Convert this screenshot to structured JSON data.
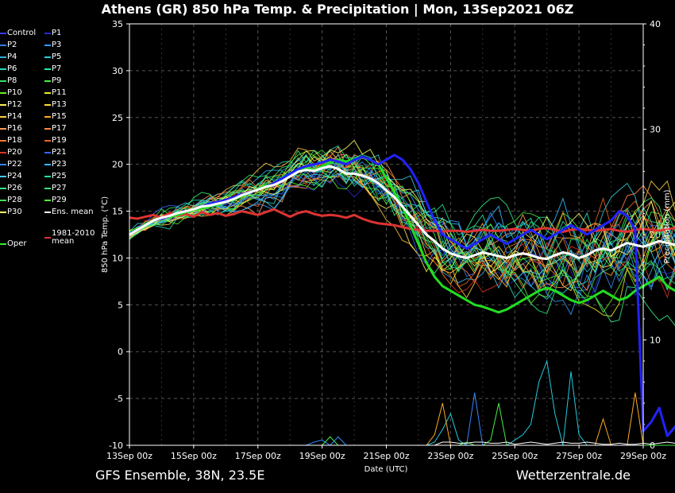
{
  "page": {
    "title": "Athens  (GR)  850 hPa Temp. & Precipitation | Mon, 13Sep2021 06Z",
    "footer_left": "GFS Ensemble, 38N, 23.5E",
    "footer_right": "Wetterzentrale.de"
  },
  "legend": {
    "items": [
      {
        "label": "Control",
        "color": "#3a3aff"
      },
      {
        "label": "P1",
        "color": "#2a2acc"
      },
      {
        "label": "P2",
        "color": "#3377ee"
      },
      {
        "label": "P3",
        "color": "#3399ff"
      },
      {
        "label": "P4",
        "color": "#33aadd"
      },
      {
        "label": "P5",
        "color": "#33ccdd"
      },
      {
        "label": "P6",
        "color": "#22ddbb"
      },
      {
        "label": "P7",
        "color": "#22ee99"
      },
      {
        "label": "P8",
        "color": "#33dd66"
      },
      {
        "label": "P9",
        "color": "#44ee44"
      },
      {
        "label": "P10",
        "color": "#66ee22"
      },
      {
        "label": "P11",
        "color": "#eeee22"
      },
      {
        "label": "P12",
        "color": "#ffee55"
      },
      {
        "label": "P13",
        "color": "#ffdd33"
      },
      {
        "label": "P14",
        "color": "#ffcc44"
      },
      {
        "label": "P15",
        "color": "#ffaa22"
      },
      {
        "label": "P16",
        "color": "#ff9955"
      },
      {
        "label": "P17",
        "color": "#ff8844"
      },
      {
        "label": "P18",
        "color": "#ff7733"
      },
      {
        "label": "P19",
        "color": "#ee6622"
      },
      {
        "label": "P20",
        "color": "#dd3322"
      },
      {
        "label": "P21",
        "color": "#3366ff"
      },
      {
        "label": "P22",
        "color": "#3388ff"
      },
      {
        "label": "P23",
        "color": "#33bbff"
      },
      {
        "label": "P24",
        "color": "#44ccee"
      },
      {
        "label": "P25",
        "color": "#22ddaa"
      },
      {
        "label": "P26",
        "color": "#33ee88"
      },
      {
        "label": "P27",
        "color": "#33ee77"
      },
      {
        "label": "P28",
        "color": "#44dd55"
      },
      {
        "label": "P29",
        "color": "#55ee33"
      },
      {
        "label": "P30",
        "color": "#ffff66"
      },
      {
        "label": "Ens. mean",
        "color": "#ffffff"
      }
    ],
    "clim_label_1": "1981-2010",
    "clim_label_2": "mean",
    "clim_color": "#dd3333",
    "oper_label": "Oper",
    "oper_color": "#33ee33"
  },
  "chart_data": {
    "type": "line",
    "x_tick_labels": [
      "13Sep 00z",
      "15Sep 00z",
      "17Sep 00z",
      "19Sep 00z",
      "21Sep 00z",
      "23Sep 00z",
      "25Sep 00z",
      "27Sep 00z",
      "29Sep 00z"
    ],
    "xlabel": "Date (UTC)",
    "ylabel": "850 hPa Temp. (°C)",
    "ylabel_right": "Precipitation (mm)",
    "xlim": [
      0,
      384
    ],
    "ylim": [
      -10,
      35
    ],
    "y_ticks": [
      -10,
      -5,
      0,
      5,
      10,
      15,
      20,
      25,
      30,
      35
    ],
    "ylim_right": [
      0,
      40
    ],
    "y_ticks_right": [
      0,
      10,
      20,
      30,
      40
    ],
    "grid": true,
    "x_step_hours": 6,
    "series": [
      {
        "name": "Ens. mean",
        "color": "#ffffff",
        "width": 3,
        "values": [
          12.5,
          13.0,
          13.5,
          14.0,
          14.3,
          14.5,
          14.8,
          15.0,
          15.2,
          15.5,
          15.6,
          15.8,
          16.0,
          16.3,
          16.7,
          17.0,
          17.3,
          17.6,
          17.8,
          18.2,
          18.7,
          19.2,
          19.4,
          19.3,
          19.6,
          19.8,
          19.5,
          19.0,
          19.0,
          18.8,
          18.5,
          18.0,
          17.2,
          16.5,
          15.5,
          14.5,
          13.5,
          12.5,
          11.8,
          11.0,
          10.5,
          10.2,
          10.0,
          10.3,
          10.6,
          10.4,
          10.2,
          10.0,
          10.3,
          10.5,
          10.3,
          10.0,
          9.9,
          10.3,
          10.6,
          10.4,
          10.0,
          10.3,
          10.8,
          11.0,
          10.8,
          11.2,
          11.6,
          11.4,
          11.2,
          11.5,
          11.8,
          11.6,
          11.4,
          11.7,
          11.9,
          11.8,
          11.6,
          11.8,
          12.0,
          11.9,
          11.6,
          11.8,
          12.1,
          12.0,
          11.8,
          12.0,
          12.2,
          12.1,
          11.9,
          12.1,
          12.3,
          12.2,
          12.0,
          12.2,
          12.4,
          12.3,
          12.1,
          12.3,
          12.5,
          12.4,
          12.2,
          12.3,
          12.5,
          12.4,
          12.3,
          12.5,
          12.6,
          12.5,
          12.4,
          12.5,
          12.6,
          12.5,
          12.4,
          12.4
        ]
      },
      {
        "name": "1981-2010 mean",
        "color": "#dd3333",
        "width": 3,
        "values": [
          14.3,
          14.2,
          14.4,
          14.6,
          14.3,
          14.8,
          14.5,
          14.7,
          14.4,
          14.9,
          14.6,
          14.8,
          14.5,
          14.7,
          15.0,
          14.8,
          14.6,
          14.9,
          15.2,
          14.8,
          14.4,
          14.8,
          15.0,
          14.7,
          14.5,
          14.6,
          14.5,
          14.3,
          14.6,
          14.2,
          13.9,
          13.7,
          13.6,
          13.5,
          13.3,
          13.1,
          13.0,
          12.9,
          12.9,
          12.8,
          12.9,
          12.9,
          12.8,
          12.9,
          13.0,
          12.9,
          12.9,
          13.0,
          13.1,
          13.0,
          12.9,
          13.1,
          13.2,
          13.0,
          12.8,
          13.0,
          13.1,
          13.0,
          12.9,
          13.0,
          13.1,
          12.9,
          12.8,
          13.0,
          13.1,
          13.0,
          12.9,
          13.1,
          13.2,
          13.0,
          12.8,
          13.0,
          13.1,
          12.9,
          12.7,
          12.9,
          13.0,
          12.8,
          12.6,
          12.8,
          12.9,
          12.7,
          12.6,
          12.8,
          12.9,
          12.7,
          12.5,
          12.7,
          12.8,
          12.6,
          12.5,
          12.7,
          12.8,
          12.6,
          12.5,
          12.7,
          12.8,
          12.6,
          12.5,
          12.6,
          12.7,
          12.6,
          12.5,
          12.6,
          12.7,
          12.6,
          12.5,
          12.6,
          12.7,
          12.6
        ]
      },
      {
        "name": "Oper",
        "color": "#22dd22",
        "width": 3,
        "values": [
          12.8,
          13.0,
          13.6,
          14.0,
          14.3,
          14.4,
          14.6,
          14.9,
          15.1,
          15.3,
          15.5,
          15.7,
          16.0,
          16.2,
          16.6,
          17.0,
          17.4,
          17.7,
          18.0,
          18.5,
          19.0,
          19.5,
          19.6,
          19.4,
          19.8,
          20.2,
          20.5,
          20.3,
          20.6,
          20.8,
          20.5,
          20.0,
          18.5,
          17.0,
          15.5,
          13.5,
          11.5,
          9.5,
          8.0,
          7.0,
          6.5,
          6.0,
          5.5,
          5.0,
          4.8,
          4.5,
          4.2,
          4.5,
          5.0,
          5.5,
          6.0,
          6.5,
          6.8,
          6.5,
          6.0,
          5.5,
          5.2,
          5.5,
          6.0,
          6.5,
          6.0,
          5.5,
          5.8,
          6.5,
          7.0,
          7.5,
          8.0,
          7.0,
          6.5,
          7.5,
          8.5,
          9.0,
          8.0,
          7.5,
          8.5,
          9.5,
          10.0,
          9.0,
          8.5,
          9.5,
          10.5,
          10.0,
          9.5,
          10.0,
          10.5,
          11.0,
          10.0,
          9.5,
          10.5,
          11.5,
          11.0,
          10.5,
          11.0,
          11.5,
          12.0,
          11.0,
          10.5,
          11.5,
          12.0,
          11.5,
          11.0,
          11.5,
          12.0,
          11.5,
          11.0,
          11.5,
          12.0,
          11.5,
          11.0,
          11.0
        ]
      },
      {
        "name": "Control",
        "color": "#2222ff",
        "width": 3,
        "values": [
          12.6,
          13.0,
          13.5,
          14.0,
          14.2,
          14.5,
          14.8,
          15.0,
          15.2,
          15.5,
          15.8,
          16.0,
          16.2,
          16.5,
          16.8,
          17.0,
          17.3,
          17.6,
          18.0,
          18.5,
          19.0,
          19.5,
          19.8,
          20.0,
          20.2,
          20.5,
          20.3,
          20.0,
          20.5,
          20.8,
          20.5,
          20.0,
          20.5,
          21.0,
          20.5,
          19.5,
          18.0,
          16.0,
          14.0,
          12.5,
          12.0,
          11.5,
          11.0,
          11.5,
          12.0,
          12.5,
          12.0,
          11.5,
          12.0,
          12.5,
          13.0,
          12.5,
          12.0,
          12.5,
          13.0,
          13.5,
          13.0,
          12.5,
          13.0,
          13.5,
          14.0,
          15.0,
          14.5,
          13.0,
          -8.5,
          -7.5,
          -6.0,
          -9.0,
          -8.0,
          -9.5,
          -8.5,
          -6.5,
          5.0,
          4.8,
          4.5,
          4.4,
          4.3,
          4.5,
          4.2,
          4.6,
          3.0,
          2.5,
          2.8,
          2.6,
          4.5,
          5.5,
          6.0,
          6.5,
          7.0,
          7.5,
          7.0,
          6.5,
          7.0,
          7.5,
          8.0,
          7.5,
          7.0,
          7.2,
          7.5,
          7.0,
          6.8,
          7.0,
          7.2,
          7.0,
          6.8,
          7.0,
          7.2,
          7.0,
          6.9,
          7.0
        ]
      }
    ],
    "precip_series": [
      {
        "color": "#22ccdd",
        "values": [
          0,
          0,
          0,
          0,
          0,
          0,
          0,
          0,
          0,
          0,
          0,
          0,
          0,
          0,
          0,
          0,
          0,
          0,
          0,
          0,
          0,
          0,
          0,
          0,
          0,
          0,
          0,
          0,
          0,
          0,
          0,
          0,
          0,
          0,
          0,
          0,
          0,
          0,
          0.3,
          1.5,
          3.0,
          0.5,
          0,
          0,
          0,
          0,
          0,
          0,
          0.5,
          1,
          2,
          6,
          8,
          3,
          0,
          7,
          1,
          0,
          0,
          0,
          0,
          0,
          0,
          0,
          0,
          0,
          0,
          0,
          0,
          0,
          0,
          0,
          0,
          0,
          0,
          0,
          0,
          0,
          0,
          0,
          0,
          0,
          0,
          0,
          0,
          0,
          0,
          0,
          1,
          2,
          1,
          0,
          12,
          0,
          0,
          0,
          0,
          0,
          0,
          0,
          0,
          0,
          0,
          0,
          0,
          0,
          0,
          0,
          0,
          0
        ]
      },
      {
        "color": "#ffaa22",
        "values": [
          0,
          0,
          0,
          0,
          0,
          0,
          0,
          0,
          0,
          0,
          0,
          0,
          0,
          0,
          0,
          0,
          0,
          0,
          0,
          0,
          0,
          0,
          0,
          0,
          0,
          0,
          0,
          0,
          0,
          0,
          0,
          0,
          0,
          0,
          0,
          0,
          0,
          0,
          1,
          4,
          0,
          0,
          0,
          0,
          0,
          0,
          0,
          0,
          0,
          0,
          0,
          0,
          0,
          0,
          0,
          0,
          0,
          0,
          0,
          2.5,
          0,
          0,
          0,
          5,
          0,
          0,
          0,
          0,
          0,
          0,
          0,
          0,
          0,
          0,
          0,
          0,
          0,
          0,
          0,
          0,
          0,
          0,
          0,
          0,
          0,
          0,
          0,
          0,
          0,
          0,
          0,
          0,
          0,
          0,
          0,
          0,
          0,
          0,
          0,
          0,
          0,
          0,
          0,
          0,
          0,
          0,
          0,
          0,
          0,
          0
        ]
      },
      {
        "color": "#3388ff",
        "values": [
          0,
          0,
          0,
          0,
          0,
          0,
          0,
          0,
          0,
          0,
          0,
          0,
          0,
          0,
          0,
          0,
          0,
          0,
          0,
          0,
          0,
          0,
          0,
          0.3,
          0.5,
          0,
          0.8,
          0,
          0,
          0,
          0,
          0,
          0,
          0,
          0,
          0,
          0,
          0,
          0,
          0,
          0,
          0,
          0,
          5,
          0,
          0,
          0,
          0,
          0,
          0,
          0,
          0,
          0,
          0,
          0,
          0,
          0,
          0,
          0,
          0,
          0,
          0,
          0,
          0,
          0,
          0,
          0,
          0,
          0,
          0,
          0,
          0,
          0,
          0,
          0,
          0,
          0,
          0,
          0,
          0,
          0,
          0,
          0,
          0,
          0,
          0,
          0,
          0,
          0,
          0,
          0,
          0,
          0,
          0,
          0,
          10,
          0,
          0,
          0,
          0,
          0,
          0,
          0,
          0,
          0,
          0,
          0,
          0,
          0,
          0
        ]
      },
      {
        "color": "#44ee44",
        "values": [
          0,
          0,
          0,
          0,
          0,
          0,
          0,
          0,
          0,
          0,
          0,
          0,
          0,
          0,
          0,
          0,
          0,
          0,
          0,
          0,
          0,
          0,
          0,
          0,
          0,
          0.8,
          0,
          0,
          0,
          0,
          0,
          0,
          0,
          0,
          0,
          0,
          0,
          0,
          0,
          0,
          0,
          0,
          0.3,
          0,
          0,
          0.5,
          4,
          0,
          0,
          0,
          0,
          0,
          0,
          0,
          0,
          0,
          0,
          0,
          0,
          0,
          0,
          0,
          0,
          0,
          0,
          0,
          0,
          0,
          0,
          0,
          0,
          0,
          0,
          0,
          0,
          0,
          0,
          0,
          0,
          0,
          0,
          0,
          0,
          0,
          0,
          0,
          0,
          0,
          0,
          0,
          0,
          0,
          0,
          0,
          0,
          0,
          0,
          0,
          0,
          0,
          0,
          0,
          0,
          0,
          0,
          0,
          0,
          0,
          0,
          0
        ]
      },
      {
        "color": "#ffffff",
        "values": [
          0,
          0,
          0,
          0,
          0,
          0,
          0,
          0,
          0,
          0,
          0,
          0,
          0,
          0,
          0,
          0,
          0,
          0,
          0,
          0,
          0,
          0,
          0,
          0,
          0,
          0,
          0,
          0,
          0,
          0,
          0,
          0,
          0,
          0,
          0,
          0,
          0,
          0,
          0,
          0.3,
          0.3,
          0.2,
          0.2,
          0.3,
          0.3,
          0.2,
          0.2,
          0.3,
          0.1,
          0.2,
          0.3,
          0.2,
          0.1,
          0.2,
          0.3,
          0.2,
          0.2,
          0.3,
          0.2,
          0.1,
          0.1,
          0.2,
          0.1,
          0.1,
          0.2,
          0.1,
          0.2,
          0.3,
          0.2,
          0.5,
          0.3,
          0.2,
          0.1,
          0.2,
          0.1,
          0.2,
          0.1,
          0.3,
          0.4,
          0.3,
          0.2,
          0.3,
          0.2,
          0.1,
          0.2,
          0.3,
          0.3,
          0.2,
          0.2,
          0.3,
          0.2,
          0.1,
          0.2,
          0.1,
          0.1,
          0.2,
          0.1,
          0.2,
          0.2,
          0.1,
          0.1,
          0.2,
          0.1,
          0.1,
          0.2,
          0.2,
          0.1,
          0.1,
          0.1,
          0
        ]
      }
    ]
  }
}
